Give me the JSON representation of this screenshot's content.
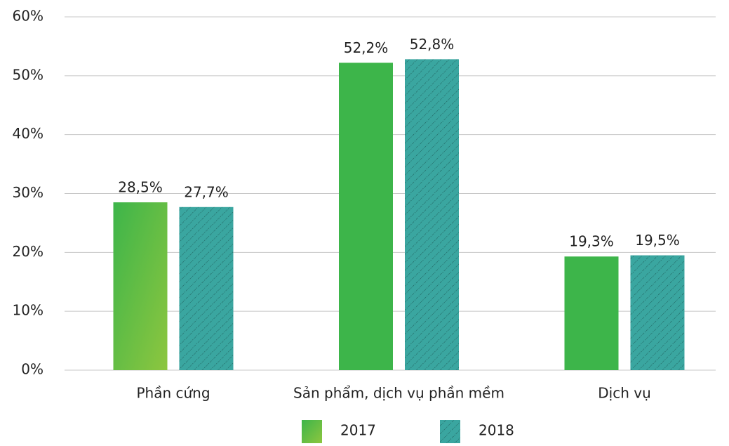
{
  "chart_data": {
    "type": "bar",
    "categories": [
      "Phần cứng",
      "Sản phẩm, dịch vụ phần mềm",
      "Dịch vụ"
    ],
    "series": [
      {
        "name": "2017",
        "color": "#3db54a",
        "values": [
          28.5,
          52.2,
          19.3
        ],
        "value_labels": [
          "28,5%",
          "52,2%",
          "19,3%"
        ]
      },
      {
        "name": "2018",
        "color": "#3aa6a0",
        "values": [
          27.7,
          52.8,
          19.5
        ],
        "value_labels": [
          "27,7%",
          "52,8%",
          "19,5%"
        ]
      }
    ],
    "ylim": [
      0,
      60
    ],
    "yticks": [
      {
        "value": 0,
        "label": "0%"
      },
      {
        "value": 10,
        "label": "10%"
      },
      {
        "value": 20,
        "label": "20%"
      },
      {
        "value": 30,
        "label": "30%"
      },
      {
        "value": 40,
        "label": "40%"
      },
      {
        "value": 50,
        "label": "50%"
      },
      {
        "value": 60,
        "label": "60%"
      }
    ],
    "grid": true,
    "legend": "bottom"
  }
}
